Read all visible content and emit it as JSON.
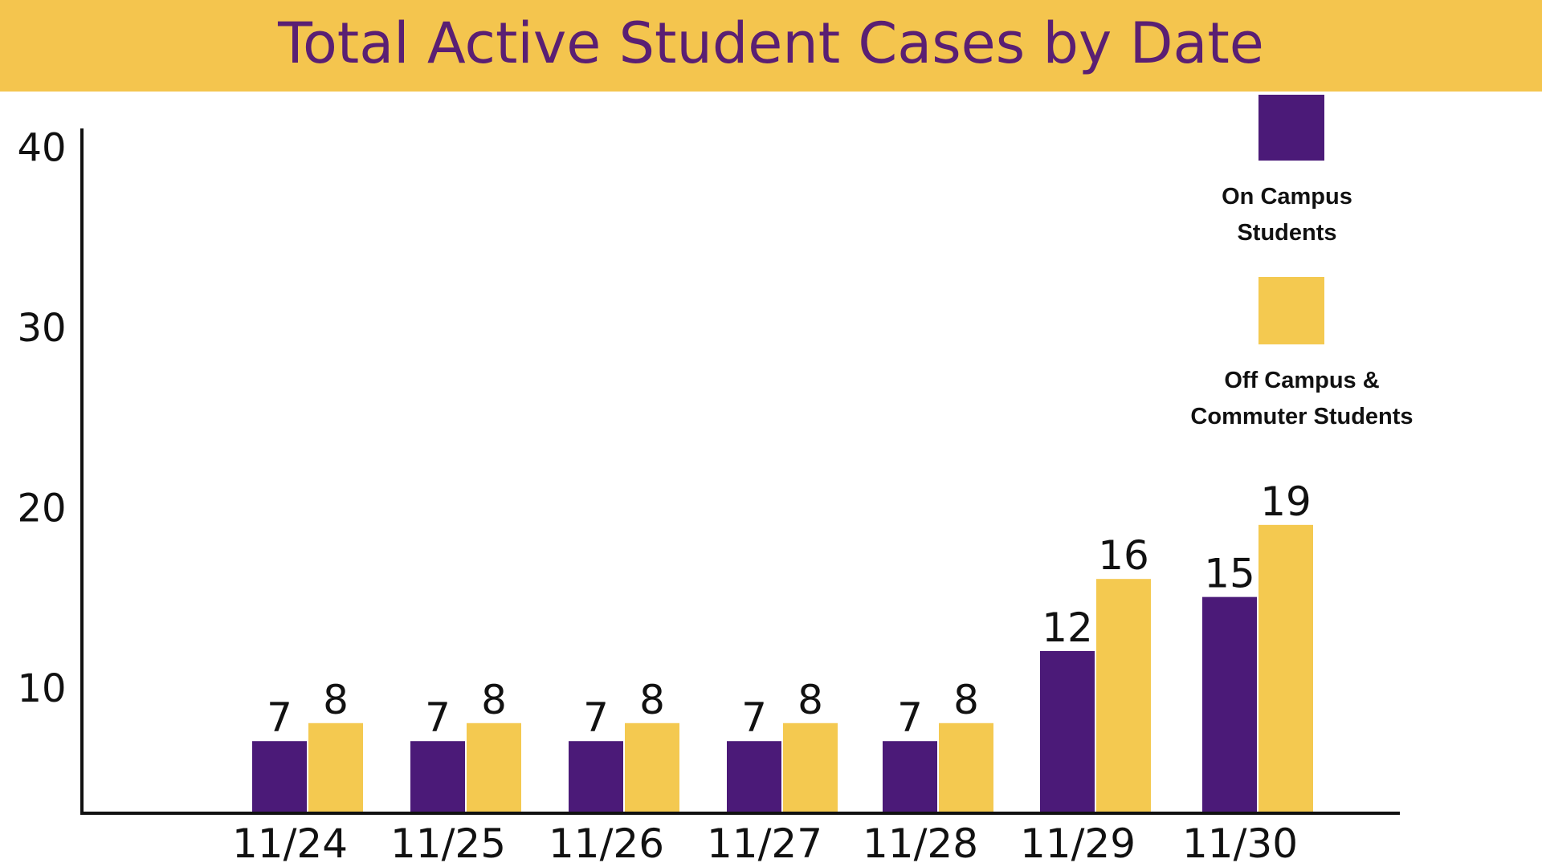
{
  "colors": {
    "banner": "#f4c54e",
    "title": "#5a1f73",
    "on_campus": "#4b1a78",
    "off_campus": "#f4c950",
    "axis": "#111111",
    "text": "#111111"
  },
  "chart_data": {
    "type": "bar",
    "title": "Total Active Student Cases by Date",
    "xlabel": "",
    "ylabel": "",
    "categories": [
      "11/24",
      "11/25",
      "11/26",
      "11/27",
      "11/28",
      "11/29",
      "11/30"
    ],
    "yticks": [
      10,
      20,
      30,
      40
    ],
    "ylim": [
      3,
      41
    ],
    "grid": false,
    "legend_position": "top-right",
    "series": [
      {
        "name": "On Campus Students",
        "values": [
          7,
          7,
          7,
          7,
          7,
          12,
          15
        ],
        "labels": [
          "7",
          "7",
          "7",
          "7",
          "7",
          "12",
          "15"
        ],
        "color": "#4b1a78"
      },
      {
        "name": "Off Campus & Commuter Students",
        "values": [
          8,
          8,
          8,
          8,
          8,
          16,
          19
        ],
        "labels": [
          "8",
          "8",
          "8",
          "8",
          "8",
          "16",
          "19"
        ],
        "color": "#f4c950"
      }
    ]
  },
  "legend": {
    "on_campus_line1": "On Campus",
    "on_campus_line2": "Students",
    "off_campus_line1": "Off Campus &",
    "off_campus_line2": "Commuter Students"
  }
}
